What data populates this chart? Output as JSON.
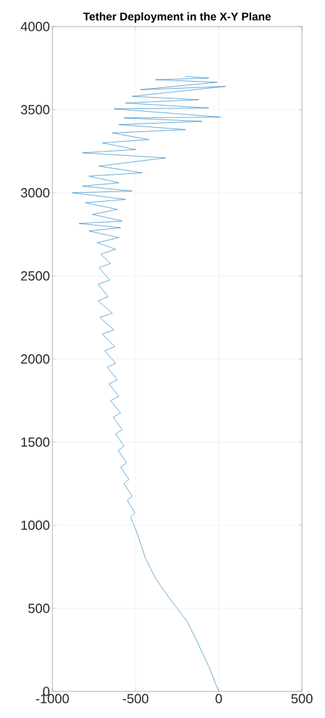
{
  "chart_data": {
    "type": "line",
    "title": "Tether Deployment in the X-Y Plane",
    "x": [
      0,
      -60,
      -130,
      -190,
      -250,
      -310,
      -380,
      -440,
      -490,
      -530,
      -505,
      -550,
      -520,
      -570,
      -540,
      -590,
      -555,
      -605,
      -570,
      -620,
      -580,
      -635,
      -590,
      -650,
      -600,
      -660,
      -610,
      -670,
      -620,
      -685,
      -625,
      -700,
      -630,
      -715,
      -640,
      -725,
      -665,
      -725,
      -655,
      -720,
      -650,
      -710,
      -620,
      -730,
      -600,
      -780,
      -590,
      -840,
      -580,
      -760,
      -610,
      -800,
      -560,
      -880,
      -520,
      -820,
      -600,
      -780,
      -460,
      -720,
      -320,
      -820,
      -500,
      -700,
      -420,
      -640,
      -200,
      -600,
      -100,
      -570,
      10,
      -630,
      -60,
      -560,
      -120,
      -520,
      40,
      -470,
      -10,
      -380,
      -60,
      -200
    ],
    "series": [
      {
        "color": "#0072bd",
        "values": [
          0,
          150,
          300,
          420,
          500,
          580,
          680,
          800,
          950,
          1050,
          1075,
          1150,
          1175,
          1250,
          1275,
          1350,
          1375,
          1450,
          1475,
          1550,
          1575,
          1650,
          1675,
          1750,
          1775,
          1850,
          1875,
          1950,
          1975,
          2050,
          2075,
          2150,
          2175,
          2250,
          2275,
          2350,
          2375,
          2450,
          2475,
          2550,
          2575,
          2630,
          2660,
          2700,
          2730,
          2770,
          2790,
          2815,
          2830,
          2870,
          2900,
          2940,
          2960,
          3000,
          3010,
          3040,
          3060,
          3100,
          3120,
          3160,
          3210,
          3240,
          3260,
          3300,
          3320,
          3360,
          3380,
          3410,
          3430,
          3450,
          3455,
          3505,
          3510,
          3540,
          3560,
          3580,
          3640,
          3620,
          3665,
          3680,
          3690,
          3700
        ]
      }
    ],
    "xlim": [
      -1000,
      500
    ],
    "ylim": [
      0,
      4000
    ],
    "xticks": [
      -1000,
      -500,
      0,
      500
    ],
    "yticks": [
      0,
      500,
      1000,
      1500,
      2000,
      2500,
      3000,
      3500,
      4000
    ],
    "grid": true
  }
}
